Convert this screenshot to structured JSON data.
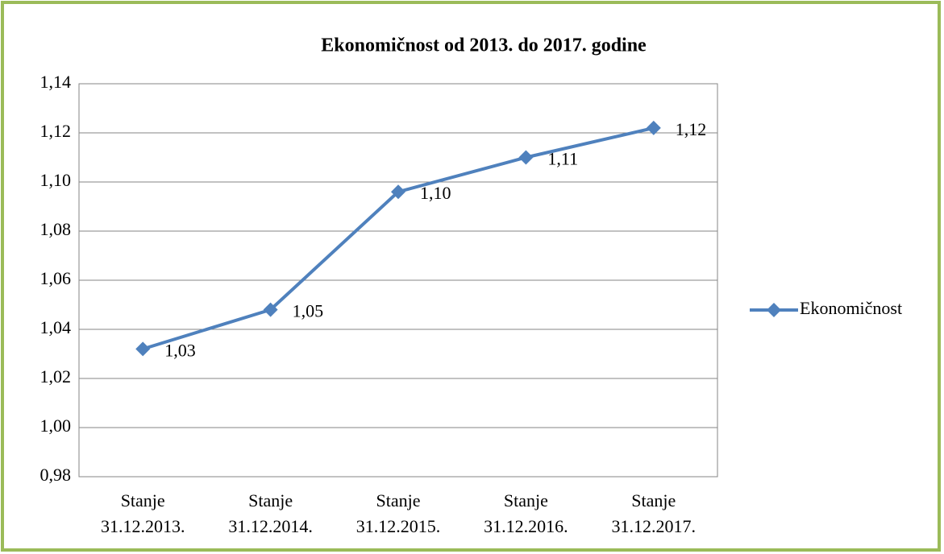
{
  "chart_data": {
    "type": "line",
    "title": "Ekonomičnost od 2013. do 2017. godine",
    "categories": [
      "Stanje 31.12.2013.",
      "Stanje 31.12.2014.",
      "Stanje 31.12.2015.",
      "Stanje 31.12.2016.",
      "Stanje 31.12.2017."
    ],
    "series": [
      {
        "name": "Ekonomičnost",
        "color": "#4f81bd",
        "values": [
          1.032,
          1.048,
          1.096,
          1.11,
          1.122
        ],
        "value_labels": [
          "1,03",
          "1,05",
          "1,10",
          "1,11",
          "1,12"
        ]
      }
    ],
    "ylim": [
      0.98,
      1.14
    ],
    "yticks": [
      {
        "value": 0.98,
        "label": "0,98"
      },
      {
        "value": 1.0,
        "label": "1,00"
      },
      {
        "value": 1.02,
        "label": "1,02"
      },
      {
        "value": 1.04,
        "label": "1,04"
      },
      {
        "value": 1.06,
        "label": "1,06"
      },
      {
        "value": 1.08,
        "label": "1,08"
      },
      {
        "value": 1.1,
        "label": "1,10"
      },
      {
        "value": 1.12,
        "label": "1,12"
      },
      {
        "value": 1.14,
        "label": "1,14"
      }
    ],
    "grid": true,
    "legend": "right"
  }
}
